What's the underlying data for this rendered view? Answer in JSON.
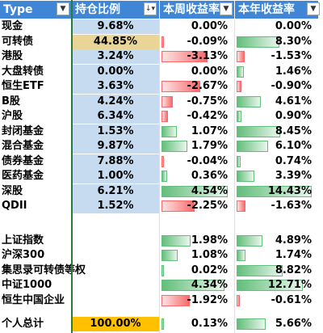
{
  "header": {
    "col1": "Type",
    "col2": "持仓比例",
    "col3": "本周收益率",
    "col4": "本年收益率"
  },
  "rows": [
    {
      "name": "现金",
      "alloc": "9.68%",
      "week": "0.00%",
      "year": "0.00%",
      "week_v": 0.0,
      "year_v": 0.0,
      "alloc_style": "alloc-bg"
    },
    {
      "name": "可转债",
      "alloc": "44.85%",
      "week": "-0.09%",
      "year": "8.30%",
      "week_v": -0.09,
      "year_v": 8.3,
      "alloc_style": "hl-yellow"
    },
    {
      "name": "港股",
      "alloc": "3.24%",
      "week": "-3.13%",
      "year": "-1.53%",
      "week_v": -3.13,
      "year_v": -1.53,
      "alloc_style": "alloc-bg"
    },
    {
      "name": "大盘转债",
      "alloc": "0.00%",
      "week": "0.00%",
      "year": "1.46%",
      "week_v": 0.0,
      "year_v": 1.46,
      "alloc_style": "alloc-bg"
    },
    {
      "name": "恒生ETF",
      "alloc": "3.63%",
      "week": "-2.67%",
      "year": "-0.90%",
      "week_v": -2.67,
      "year_v": -0.9,
      "alloc_style": "alloc-bg"
    },
    {
      "name": "B股",
      "alloc": "4.24%",
      "week": "-0.75%",
      "year": "4.61%",
      "week_v": -0.75,
      "year_v": 4.61,
      "alloc_style": "alloc-bg"
    },
    {
      "name": "沪股",
      "alloc": "6.34%",
      "week": "-0.42%",
      "year": "0.90%",
      "week_v": -0.42,
      "year_v": 0.9,
      "alloc_style": "alloc-bg"
    },
    {
      "name": "封闭基金",
      "alloc": "1.53%",
      "week": "1.07%",
      "year": "8.45%",
      "week_v": 1.07,
      "year_v": 8.45,
      "alloc_style": "alloc-bg"
    },
    {
      "name": "混合基金",
      "alloc": "9.87%",
      "week": "1.79%",
      "year": "6.10%",
      "week_v": 1.79,
      "year_v": 6.1,
      "alloc_style": "alloc-bg"
    },
    {
      "name": "债券基金",
      "alloc": "7.88%",
      "week": "-0.04%",
      "year": "0.74%",
      "week_v": -0.04,
      "year_v": 0.74,
      "alloc_style": "alloc-bg"
    },
    {
      "name": "医药基金",
      "alloc": "1.00%",
      "week": "0.36%",
      "year": "3.39%",
      "week_v": 0.36,
      "year_v": 3.39,
      "alloc_style": "alloc-bg"
    },
    {
      "name": "深股",
      "alloc": "6.21%",
      "week": "4.54%",
      "year": "14.43%",
      "week_v": 4.54,
      "year_v": 14.43,
      "alloc_style": "alloc-bg"
    },
    {
      "name": "QDII",
      "alloc": "1.52%",
      "week": "-2.25%",
      "year": "-1.63%",
      "week_v": -2.25,
      "year_v": -1.63,
      "alloc_style": "alloc-bg"
    }
  ],
  "index_rows": [
    {
      "name": "上证指数",
      "week": "1.98%",
      "year": "4.89%",
      "week_v": 1.98,
      "year_v": 4.89
    },
    {
      "name": "沪深300",
      "week": "1.08%",
      "year": "1.74%",
      "week_v": 1.08,
      "year_v": 1.74
    },
    {
      "name": "集思录可转债等权",
      "week": "0.02%",
      "year": "8.82%",
      "week_v": 0.02,
      "year_v": 8.82
    },
    {
      "name": "中证1000",
      "week": "4.34%",
      "year": "12.71%",
      "week_v": 4.34,
      "year_v": 12.71
    },
    {
      "name": "恒生中国企业",
      "week": "-1.92%",
      "year": "-0.61%",
      "week_v": -1.92,
      "year_v": -0.61
    }
  ],
  "total_row": {
    "name": "个人总计",
    "alloc": "100.00%",
    "week": "0.13%",
    "year": "5.66%",
    "week_v": 0.13,
    "year_v": 5.66
  },
  "colors": {
    "header_bg": "#3f86d6",
    "pos_bar": "#63be7b",
    "neg_bar": "#f8696b",
    "alloc_bg": "#c6dbef",
    "highlight_yellow": "#e9d595",
    "highlight_orange": "#ffc000",
    "separator": "#2a7a3a"
  }
}
